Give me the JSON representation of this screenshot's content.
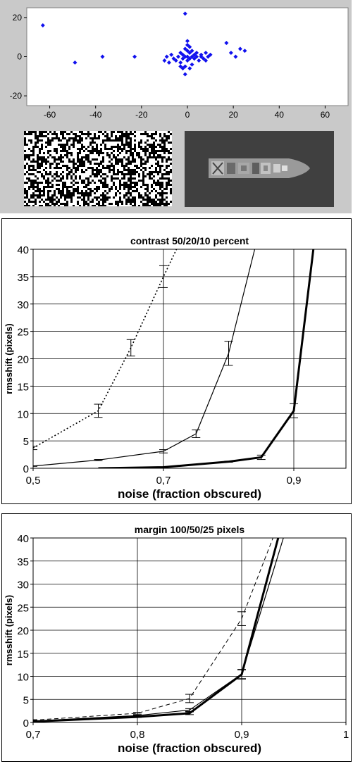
{
  "chart_data": [
    {
      "type": "scatter",
      "title": "",
      "xlabel": "",
      "ylabel": "",
      "xlim": [
        -70,
        70
      ],
      "ylim": [
        -25,
        25
      ],
      "xticks": [
        "-60",
        "-40",
        "-20",
        "0",
        "20",
        "40",
        "60"
      ],
      "yticks": [
        "20",
        "0",
        "-20"
      ],
      "grid": false,
      "legend": "none",
      "marker_color": "#1010ee",
      "points": [
        [
          -63,
          16
        ],
        [
          -49,
          -3
        ],
        [
          -37,
          0
        ],
        [
          -23,
          0
        ],
        [
          -10,
          -2
        ],
        [
          -9,
          0
        ],
        [
          -8,
          -3
        ],
        [
          -7,
          1
        ],
        [
          -6,
          -1
        ],
        [
          -5,
          -2
        ],
        [
          -4,
          0
        ],
        [
          -3,
          -3
        ],
        [
          -3,
          2
        ],
        [
          -2,
          1
        ],
        [
          -2,
          -1
        ],
        [
          -1,
          0
        ],
        [
          -1,
          4
        ],
        [
          -1,
          -5
        ],
        [
          0,
          0
        ],
        [
          0,
          3
        ],
        [
          0,
          -2
        ],
        [
          0,
          8
        ],
        [
          1,
          5
        ],
        [
          1,
          -1
        ],
        [
          1,
          2
        ],
        [
          2,
          0
        ],
        [
          2,
          -4
        ],
        [
          2,
          3
        ],
        [
          3,
          1
        ],
        [
          3,
          -1
        ],
        [
          4,
          0
        ],
        [
          4,
          2
        ],
        [
          5,
          -2
        ],
        [
          6,
          0
        ],
        [
          6,
          1
        ],
        [
          7,
          -1
        ],
        [
          8,
          2
        ],
        [
          8,
          -2
        ],
        [
          9,
          0
        ],
        [
          -2,
          -6
        ],
        [
          -1,
          -9
        ],
        [
          -1,
          22
        ],
        [
          10,
          1
        ],
        [
          17,
          7
        ],
        [
          19,
          2
        ],
        [
          21,
          0
        ],
        [
          23,
          4
        ],
        [
          25,
          3
        ],
        [
          0,
          6
        ],
        [
          1,
          -6
        ],
        [
          -3,
          -5
        ]
      ]
    },
    {
      "type": "line",
      "title": "contrast  50/20/10 percent",
      "xlabel": "noise (fraction obscured)",
      "ylabel": "rmsshift (pixels)",
      "xlim": [
        0.5,
        0.98
      ],
      "ylim": [
        0,
        40
      ],
      "xticks": [
        0.5,
        0.7,
        0.9
      ],
      "xtick_labels": [
        "0,5",
        "0,7",
        "0,9"
      ],
      "yticks": [
        0,
        5,
        10,
        15,
        20,
        25,
        30,
        35,
        40
      ],
      "grid": true,
      "legend": "none",
      "series": [
        {
          "style": "dotted",
          "x": [
            0.5,
            0.6,
            0.65,
            0.7,
            0.72
          ],
          "y": [
            3.7,
            10.5,
            22,
            35,
            40
          ],
          "err": [
            0.3,
            1.2,
            1.5,
            2,
            0
          ]
        },
        {
          "style": "thin",
          "x": [
            0.5,
            0.6,
            0.7,
            0.75,
            0.8,
            0.84
          ],
          "y": [
            0.4,
            1.5,
            3.1,
            6.3,
            21,
            40
          ],
          "err": [
            0.05,
            0.1,
            0.3,
            0.7,
            2.2,
            0
          ]
        },
        {
          "style": "thick",
          "x": [
            0.6,
            0.7,
            0.8,
            0.85,
            0.9,
            0.93
          ],
          "y": [
            0,
            0.2,
            1.2,
            2,
            10.5,
            40
          ],
          "err": [
            0,
            0,
            0.1,
            0.4,
            1.3,
            0
          ]
        }
      ]
    },
    {
      "type": "line",
      "title": "margin 100/50/25 pixels",
      "xlabel": "noise (fraction obscured)",
      "ylabel": "rmsshift (pixels)",
      "xlim": [
        0.7,
        1.0
      ],
      "ylim": [
        0,
        40
      ],
      "xticks": [
        0.7,
        0.8,
        0.9,
        1.0
      ],
      "xtick_labels": [
        "0,7",
        "0,8",
        "0,9",
        "1"
      ],
      "yticks": [
        0,
        5,
        10,
        15,
        20,
        25,
        30,
        35,
        40
      ],
      "grid": true,
      "legend": "none",
      "series": [
        {
          "style": "dashed",
          "x": [
            0.7,
            0.8,
            0.85,
            0.9,
            0.93
          ],
          "y": [
            0.5,
            2,
            5.2,
            22.5,
            40
          ],
          "err": [
            0.1,
            0.2,
            0.9,
            1.5,
            0
          ]
        },
        {
          "style": "thin",
          "x": [
            0.7,
            0.8,
            0.85,
            0.9,
            0.94
          ],
          "y": [
            0.3,
            1.5,
            2.7,
            10.5,
            40
          ],
          "err": [
            0.05,
            0.1,
            0.3,
            1,
            0
          ]
        },
        {
          "style": "thick",
          "x": [
            0.7,
            0.8,
            0.85,
            0.9,
            0.935
          ],
          "y": [
            0.2,
            1.2,
            2,
            10.4,
            40
          ],
          "err": [
            0,
            0.1,
            0.3,
            1,
            0
          ]
        }
      ]
    }
  ],
  "images": [
    {
      "name": "noise-texture",
      "background": "#000000"
    },
    {
      "name": "ship-image",
      "background": "#404040"
    }
  ]
}
